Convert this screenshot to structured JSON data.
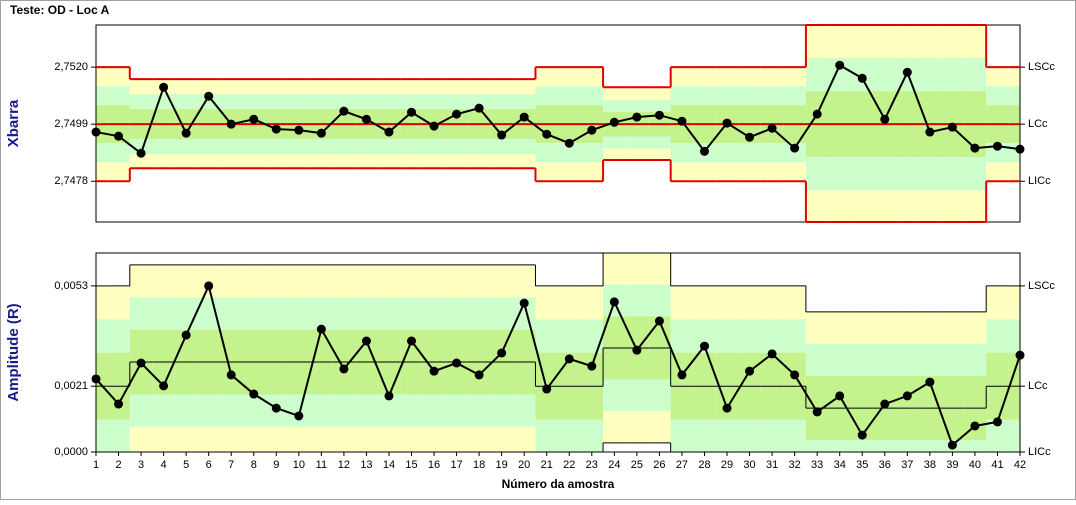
{
  "title": "Teste: OD - Loc A",
  "chart_data": [
    {
      "type": "line",
      "ylabel": "Xbarra",
      "color": "#000000",
      "x": [
        1,
        2,
        3,
        4,
        5,
        6,
        7,
        8,
        9,
        10,
        11,
        12,
        13,
        14,
        15,
        16,
        17,
        18,
        19,
        20,
        21,
        22,
        23,
        24,
        25,
        26,
        27,
        28,
        29,
        30,
        31,
        32,
        33,
        34,
        35,
        36,
        37,
        38,
        39,
        40,
        41,
        42
      ],
      "xlim": [
        1,
        42
      ],
      "ylim": [
        2.7463,
        2.75355
      ],
      "yticks": [
        {
          "value": 2.752,
          "label": "2,7520"
        },
        {
          "value": 2.7499,
          "label": "2,7499"
        },
        {
          "value": 2.7478,
          "label": "2,7478"
        }
      ],
      "values": [
        2.74961,
        2.74946,
        2.74883,
        2.75126,
        2.74957,
        2.75093,
        2.7499,
        2.75008,
        2.74972,
        2.74968,
        2.74957,
        2.75038,
        2.75008,
        2.74961,
        2.75034,
        2.74983,
        2.75027,
        2.75049,
        2.7495,
        2.75016,
        2.74953,
        2.7492,
        2.74968,
        2.74997,
        2.75016,
        2.75023,
        2.75001,
        2.7489,
        2.74994,
        2.74942,
        2.74975,
        2.74902,
        2.75027,
        2.75207,
        2.75159,
        2.75008,
        2.75181,
        2.74961,
        2.74979,
        2.74902,
        2.74909,
        2.74898
      ],
      "series": [
        {
          "name": "LSCc",
          "color": "#e00000",
          "values": [
            2.752,
            2.752,
            2.75156,
            2.75156,
            2.75156,
            2.75156,
            2.75156,
            2.75156,
            2.75156,
            2.75156,
            2.75156,
            2.75156,
            2.75156,
            2.75156,
            2.75156,
            2.75156,
            2.75156,
            2.75156,
            2.75156,
            2.75156,
            2.752,
            2.752,
            2.752,
            2.75126,
            2.75126,
            2.75126,
            2.752,
            2.752,
            2.752,
            2.752,
            2.752,
            2.752,
            2.75355,
            2.75355,
            2.75355,
            2.75355,
            2.75355,
            2.75355,
            2.75355,
            2.75355,
            2.752,
            2.752
          ]
        },
        {
          "name": "LCc",
          "color": "#e00000",
          "values": [
            2.7499,
            2.7499,
            2.7499,
            2.7499,
            2.7499,
            2.7499,
            2.7499,
            2.7499,
            2.7499,
            2.7499,
            2.7499,
            2.7499,
            2.7499,
            2.7499,
            2.7499,
            2.7499,
            2.7499,
            2.7499,
            2.7499,
            2.7499,
            2.7499,
            2.7499,
            2.7499,
            2.7499,
            2.7499,
            2.7499,
            2.7499,
            2.7499,
            2.7499,
            2.7499,
            2.7499,
            2.7499,
            2.7499,
            2.7499,
            2.7499,
            2.7499,
            2.7499,
            2.7499,
            2.7499,
            2.7499,
            2.7499,
            2.7499
          ]
        },
        {
          "name": "LICc",
          "color": "#e00000",
          "values": [
            2.7478,
            2.7478,
            2.74828,
            2.74828,
            2.74828,
            2.74828,
            2.74828,
            2.74828,
            2.74828,
            2.74828,
            2.74828,
            2.74828,
            2.74828,
            2.74828,
            2.74828,
            2.74828,
            2.74828,
            2.74828,
            2.74828,
            2.74828,
            2.7478,
            2.7478,
            2.7478,
            2.74858,
            2.74858,
            2.74858,
            2.7478,
            2.7478,
            2.7478,
            2.7478,
            2.7478,
            2.7478,
            2.7463,
            2.7463,
            2.7463,
            2.7463,
            2.7463,
            2.7463,
            2.7463,
            2.7463,
            2.7478,
            2.7478
          ]
        }
      ]
    },
    {
      "type": "line",
      "ylabel": "Amplitude (R)",
      "xlabel": "Número da amostra",
      "color": "#000000",
      "x": [
        1,
        2,
        3,
        4,
        5,
        6,
        7,
        8,
        9,
        10,
        11,
        12,
        13,
        14,
        15,
        16,
        17,
        18,
        19,
        20,
        21,
        22,
        23,
        24,
        25,
        26,
        27,
        28,
        29,
        30,
        31,
        32,
        33,
        34,
        35,
        36,
        37,
        38,
        39,
        40,
        41,
        42
      ],
      "xticks": [
        1,
        2,
        3,
        4,
        5,
        6,
        7,
        8,
        9,
        10,
        11,
        12,
        13,
        14,
        15,
        16,
        17,
        18,
        19,
        20,
        21,
        22,
        23,
        24,
        25,
        26,
        27,
        28,
        29,
        30,
        31,
        32,
        33,
        34,
        35,
        36,
        37,
        38,
        39,
        40,
        41,
        42
      ],
      "xlim": [
        1,
        42
      ],
      "ylim": [
        0,
        0.00635
      ],
      "yticks": [
        {
          "value": 0.0053,
          "label": "0,0053"
        },
        {
          "value": 0.0021,
          "label": "0,0021"
        },
        {
          "value": 0,
          "label": "0,0000"
        }
      ],
      "values": [
        0.00233,
        0.00153,
        0.00284,
        0.00211,
        0.00373,
        0.0053,
        0.00246,
        0.00185,
        0.0014,
        0.00115,
        0.00392,
        0.00265,
        0.00354,
        0.00179,
        0.00354,
        0.00258,
        0.00284,
        0.00246,
        0.00316,
        0.00475,
        0.00201,
        0.00297,
        0.00274,
        0.00479,
        0.00325,
        0.00418,
        0.00246,
        0.00338,
        0.0014,
        0.00258,
        0.00313,
        0.00246,
        0.00128,
        0.00179,
        0.00054,
        0.00153,
        0.00179,
        0.00223,
        0.00022,
        0.00083,
        0.00096,
        0.00309
      ],
      "series": [
        {
          "name": "LSCc",
          "color": "#000000",
          "values": [
            0.0053,
            0.0053,
            0.00597,
            0.00597,
            0.00597,
            0.00597,
            0.00597,
            0.00597,
            0.00597,
            0.00597,
            0.00597,
            0.00597,
            0.00597,
            0.00597,
            0.00597,
            0.00597,
            0.00597,
            0.00597,
            0.00597,
            0.00597,
            0.0053,
            0.0053,
            0.0053,
            0.00635,
            0.00635,
            0.00635,
            0.0053,
            0.0053,
            0.0053,
            0.0053,
            0.0053,
            0.0053,
            0.00447,
            0.00447,
            0.00447,
            0.00447,
            0.00447,
            0.00447,
            0.00447,
            0.00447,
            0.0053,
            0.0053
          ]
        },
        {
          "name": "LCc",
          "color": "#000000",
          "values": [
            0.0021,
            0.0021,
            0.00287,
            0.00287,
            0.00287,
            0.00287,
            0.00287,
            0.00287,
            0.00287,
            0.00287,
            0.00287,
            0.00287,
            0.00287,
            0.00287,
            0.00287,
            0.00287,
            0.00287,
            0.00287,
            0.00287,
            0.00287,
            0.0021,
            0.0021,
            0.0021,
            0.00332,
            0.00332,
            0.00332,
            0.0021,
            0.0021,
            0.0021,
            0.0021,
            0.0021,
            0.0021,
            0.0014,
            0.0014,
            0.0014,
            0.0014,
            0.0014,
            0.0014,
            0.0014,
            0.0014,
            0.0021,
            0.0021
          ]
        },
        {
          "name": "LICc",
          "color": "#000000",
          "values": [
            0,
            0,
            0,
            0,
            0,
            0,
            0,
            0,
            0,
            0,
            0,
            0,
            0,
            0,
            0,
            0,
            0,
            0,
            0,
            0,
            0,
            0,
            0,
            0.00029,
            0.00029,
            0.00029,
            0,
            0,
            0,
            0,
            0,
            0,
            0,
            0,
            0,
            0,
            0,
            0,
            0,
            0,
            0,
            0
          ]
        }
      ]
    }
  ]
}
